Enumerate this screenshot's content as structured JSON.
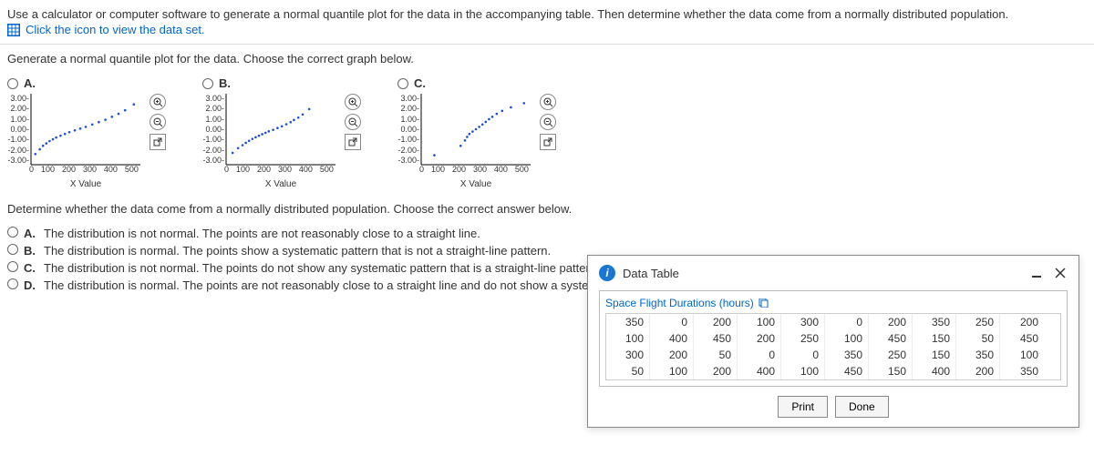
{
  "instruction": "Use a calculator or computer software to generate a normal quantile plot for the data in the accompanying table. Then determine whether the data come from a normally distributed population.",
  "viewDataLink": "Click the icon to view the data set.",
  "chooseGraph": "Generate a normal quantile plot for the data. Choose the correct graph below.",
  "options": {
    "labels": [
      "A.",
      "B.",
      "C."
    ],
    "chart": {
      "y_ticks": [
        "3.00",
        "2.00",
        "1.00",
        "0.00",
        "-1.00",
        "-2.00",
        "-3.00"
      ],
      "x_ticks": [
        "0",
        "100",
        "200",
        "300",
        "400",
        "500"
      ],
      "x_axis_label": "X Value",
      "xlim": [
        0,
        500
      ],
      "ylim": [
        -3,
        3
      ],
      "point_color": "#1f4fd6",
      "axis_color": "#000000"
    },
    "A": {
      "points": [
        [
          20,
          -2.1
        ],
        [
          40,
          -1.7
        ],
        [
          55,
          -1.4
        ],
        [
          70,
          -1.2
        ],
        [
          85,
          -1.0
        ],
        [
          100,
          -0.85
        ],
        [
          115,
          -0.7
        ],
        [
          135,
          -0.55
        ],
        [
          155,
          -0.4
        ],
        [
          175,
          -0.25
        ],
        [
          200,
          -0.1
        ],
        [
          225,
          0.05
        ],
        [
          250,
          0.2
        ],
        [
          280,
          0.4
        ],
        [
          310,
          0.6
        ],
        [
          340,
          0.8
        ],
        [
          370,
          1.05
        ],
        [
          400,
          1.3
        ],
        [
          430,
          1.6
        ],
        [
          470,
          2.1
        ]
      ]
    },
    "B": {
      "points": [
        [
          30,
          -2.0
        ],
        [
          55,
          -1.6
        ],
        [
          75,
          -1.35
        ],
        [
          90,
          -1.15
        ],
        [
          105,
          -0.98
        ],
        [
          120,
          -0.82
        ],
        [
          135,
          -0.68
        ],
        [
          150,
          -0.55
        ],
        [
          165,
          -0.42
        ],
        [
          180,
          -0.3
        ],
        [
          195,
          -0.18
        ],
        [
          215,
          -0.05
        ],
        [
          235,
          0.1
        ],
        [
          255,
          0.25
        ],
        [
          275,
          0.42
        ],
        [
          295,
          0.6
        ],
        [
          310,
          0.78
        ],
        [
          330,
          0.98
        ],
        [
          350,
          1.25
        ],
        [
          380,
          1.7
        ]
      ]
    },
    "C": {
      "points": [
        [
          60,
          -2.2
        ],
        [
          180,
          -1.4
        ],
        [
          200,
          -0.95
        ],
        [
          210,
          -0.65
        ],
        [
          220,
          -0.4
        ],
        [
          235,
          -0.2
        ],
        [
          250,
          0.0
        ],
        [
          265,
          0.2
        ],
        [
          280,
          0.4
        ],
        [
          295,
          0.62
        ],
        [
          310,
          0.85
        ],
        [
          325,
          1.05
        ],
        [
          345,
          1.3
        ],
        [
          370,
          1.55
        ],
        [
          410,
          1.85
        ],
        [
          470,
          2.2
        ]
      ]
    }
  },
  "question2": "Determine whether the data come from a normally distributed population. Choose the correct answer below.",
  "answers": {
    "A": {
      "label": "A.",
      "text": "The distribution is not normal. The points are not reasonably close to a straight line."
    },
    "B": {
      "label": "B.",
      "text": "The distribution is normal. The points show a systematic pattern that is not a straight-line pattern."
    },
    "C": {
      "label": "C.",
      "text": "The distribution is not normal. The points do not show any systematic pattern that is a straight-line pattern."
    },
    "D": {
      "label": "D.",
      "text": "The distribution is normal. The points are not reasonably close to a straight line and do not show a systematic pa"
    }
  },
  "dialog": {
    "title": "Data Table",
    "tableTitle": "Space Flight Durations (hours)",
    "rows": [
      [
        350,
        0,
        200,
        100,
        300,
        0,
        200,
        350,
        250,
        200
      ],
      [
        100,
        400,
        450,
        200,
        250,
        100,
        450,
        150,
        50,
        450
      ],
      [
        300,
        200,
        50,
        0,
        0,
        350,
        250,
        150,
        350,
        100
      ],
      [
        50,
        100,
        200,
        400,
        100,
        450,
        150,
        400,
        200,
        350
      ]
    ],
    "printLabel": "Print",
    "doneLabel": "Done"
  }
}
